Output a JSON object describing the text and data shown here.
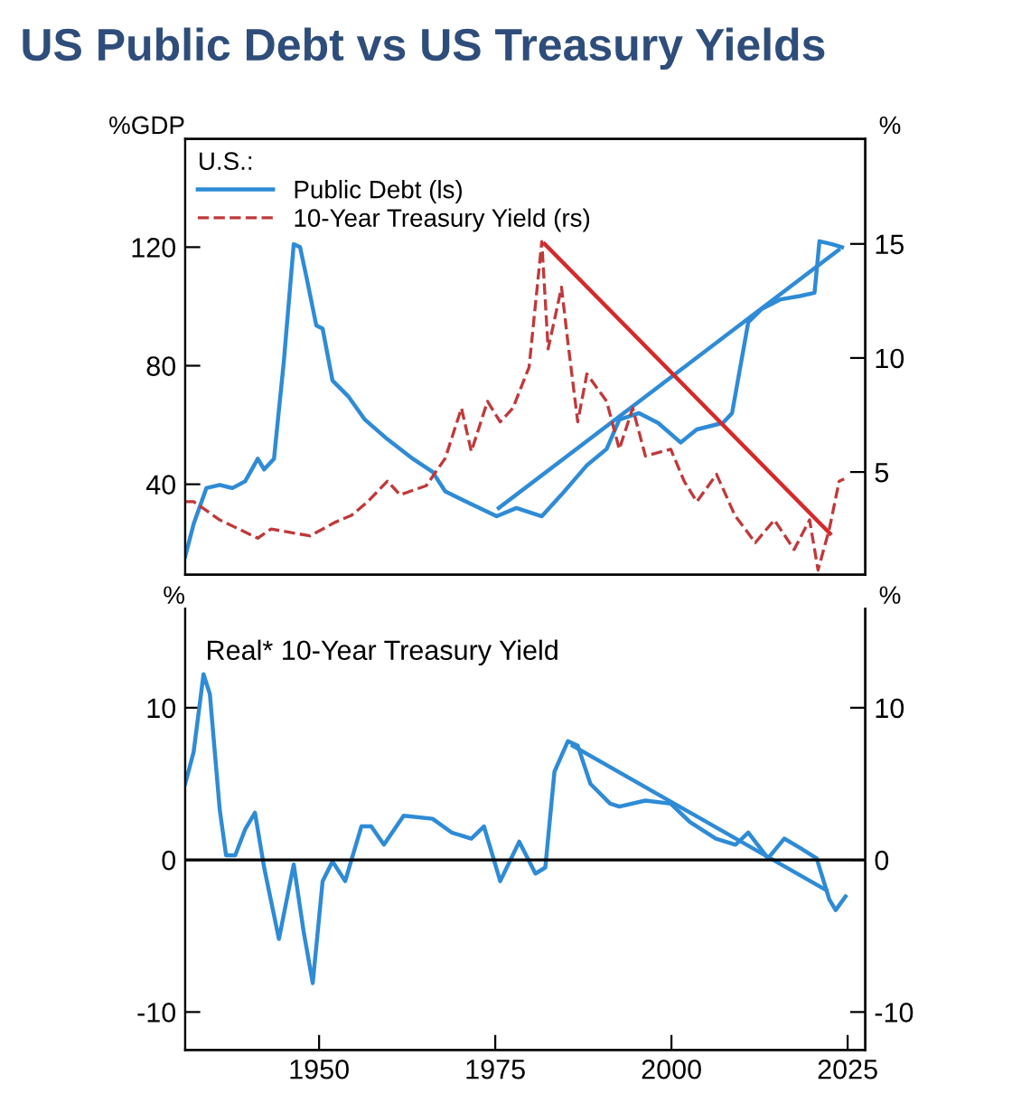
{
  "chart_data": [
    {
      "type": "line",
      "title": "US Public Debt vs US Treasury Yields",
      "ylabel": "%GDP",
      "y2label": "%",
      "legend_title": "U.S.:",
      "legend": "top left",
      "xlim": [
        1931,
        2027.5
      ],
      "xticks": [
        1950,
        1975,
        2000,
        2025
      ],
      "ylim": [
        9.5,
        156.5
      ],
      "yticks": [
        40,
        80,
        120
      ],
      "y2lim": [
        0.5,
        19.6
      ],
      "y2ticks": [
        5,
        10,
        15
      ],
      "tick_labels": "y",
      "grid": false,
      "series": [
        {
          "name": "Public Debt (ls)",
          "color": "#2e8bd6",
          "line_style": "solid",
          "axis": "y",
          "x": [
            1931,
            1932.2,
            1934,
            1935.9,
            1937.7,
            1939.5,
            1941.3,
            1942.2,
            1943.6,
            1945,
            1946.4,
            1947.3,
            1948.2,
            1949.6,
            1950.5,
            1951.9,
            1954.2,
            1956.5,
            1959.7,
            1963.3,
            1966.1,
            1967.9,
            1970.7,
            1975.2,
            1978,
            1981.6,
            1984.4,
            1988,
            1990.8,
            1992.6,
            1995.4,
            1998.1,
            2001.3,
            2003.6,
            2007.3,
            2008.6,
            2010.9,
            2012.8,
            2015.5,
            2018.2,
            2020.3,
            2021,
            2022.8,
            2024.2
          ],
          "values": [
            15.6,
            26.6,
            38.7,
            39.8,
            38.7,
            41,
            48.6,
            45,
            48.6,
            81.5,
            121,
            120,
            110,
            93.6,
            92.5,
            75,
            69.5,
            61.8,
            55.2,
            48.6,
            44.2,
            37.6,
            34.3,
            29.2,
            32,
            29.2,
            36.5,
            46.4,
            51.9,
            61.8,
            64,
            60.7,
            54.1,
            58.5,
            60.7,
            64,
            94.7,
            99.1,
            102.4,
            103.5,
            104.6,
            122,
            121,
            120
          ]
        },
        {
          "name": "10-Year Treasury Yield (rs)",
          "color": "#c0393b",
          "line_style": "dashed",
          "axis": "y2",
          "x": [
            1931,
            1932.2,
            1935.9,
            1941.3,
            1943.2,
            1948.7,
            1952.3,
            1954.6,
            1956.9,
            1959.7,
            1961.5,
            1965.2,
            1967.9,
            1970.2,
            1971.6,
            1973.9,
            1975.7,
            1977.5,
            1979.8,
            1981.6,
            1982.5,
            1984.4,
            1985.3,
            1986.7,
            1988,
            1990.8,
            1992.6,
            1994.5,
            1996.3,
            1999.9,
            2001.8,
            2003.6,
            2006.4,
            2009,
            2011.9,
            2014.6,
            2017.4,
            2019.6,
            2020.8,
            2022.4,
            2023.8,
            2024.5
          ],
          "values": [
            3.7,
            3.7,
            2.9,
            2.1,
            2.5,
            2.2,
            2.8,
            3.1,
            3.7,
            4.6,
            4.0,
            4.4,
            5.6,
            7.8,
            5.9,
            8.1,
            7.2,
            7.8,
            9.6,
            15.1,
            10.4,
            13.1,
            10.7,
            7.2,
            9.3,
            8.1,
            6.0,
            7.8,
            5.7,
            6.0,
            4.6,
            3.7,
            4.9,
            3.1,
            1.9,
            2.9,
            1.6,
            2.9,
            0.7,
            2.5,
            4.6,
            4.7
          ]
        },
        {
          "color": "#2e8bd6",
          "line_style": "solid",
          "axis": "y",
          "x": [
            1975.5,
            2023.7
          ],
          "values": [
            32,
            119
          ]
        },
        {
          "color": "#d42a2a",
          "line_style": "solid",
          "axis": "y2",
          "x": [
            1982,
            2022.5
          ],
          "values": [
            15,
            2.3
          ]
        }
      ]
    },
    {
      "type": "line",
      "title": "Real* 10-Year Treasury Yield",
      "ylabel": "%",
      "y2label": "%",
      "xlim": [
        1931,
        2027.5
      ],
      "xticks": [
        1950,
        1975,
        2000,
        2025
      ],
      "ylim": [
        -12.5,
        16.5
      ],
      "yticks": [
        -10,
        0,
        10
      ],
      "y2lim": [
        -12.5,
        16.5
      ],
      "y2ticks": [
        -10,
        0,
        10
      ],
      "grid": false,
      "ref_lines": [
        {
          "axis": "y",
          "value": 0,
          "color": "#000000",
          "line_style": "solid"
        }
      ],
      "series": [
        {
          "color": "#2e8bd6",
          "line_style": "solid",
          "axis": "y",
          "x": [
            1931,
            1932.2,
            1933.6,
            1934.5,
            1935.9,
            1936.8,
            1938.1,
            1939.5,
            1940.9,
            1942.2,
            1944.3,
            1946.4,
            1947.8,
            1949.1,
            1950.5,
            1951.9,
            1953.7,
            1956,
            1957.4,
            1959.2,
            1962,
            1966.1,
            1968.8,
            1971.6,
            1973.4,
            1975.7,
            1978.4,
            1980.7,
            1982.1,
            1983.4,
            1985.3,
            1986.7,
            1988.5,
            1991.3,
            1992.6,
            1996.3,
            1999.9,
            2002.6,
            2006.3,
            2009.1,
            2010.9,
            2013.7,
            2016,
            2018.2,
            2020.6,
            2022.4,
            2023.3,
            2024.7
          ],
          "values": [
            5.0,
            7.1,
            12.2,
            10.9,
            3.3,
            0.3,
            0.3,
            2.0,
            3.1,
            -0.5,
            -5.2,
            -0.3,
            -4.7,
            -8.1,
            -1.4,
            -0.1,
            -1.4,
            2.2,
            2.2,
            1.0,
            2.9,
            2.7,
            1.8,
            1.4,
            2.2,
            -1.4,
            1.2,
            -0.9,
            -0.5,
            5.8,
            7.8,
            7.5,
            5.0,
            3.7,
            3.5,
            3.9,
            3.7,
            2.5,
            1.4,
            1.0,
            1.8,
            0.1,
            1.4,
            0.8,
            0.1,
            -2.6,
            -3.3,
            -2.4
          ]
        },
        {
          "color": "#2e8bd6",
          "line_style": "solid",
          "axis": "y",
          "x": [
            1986,
            2022
          ],
          "values": [
            7.5,
            -2.0
          ]
        }
      ]
    }
  ]
}
